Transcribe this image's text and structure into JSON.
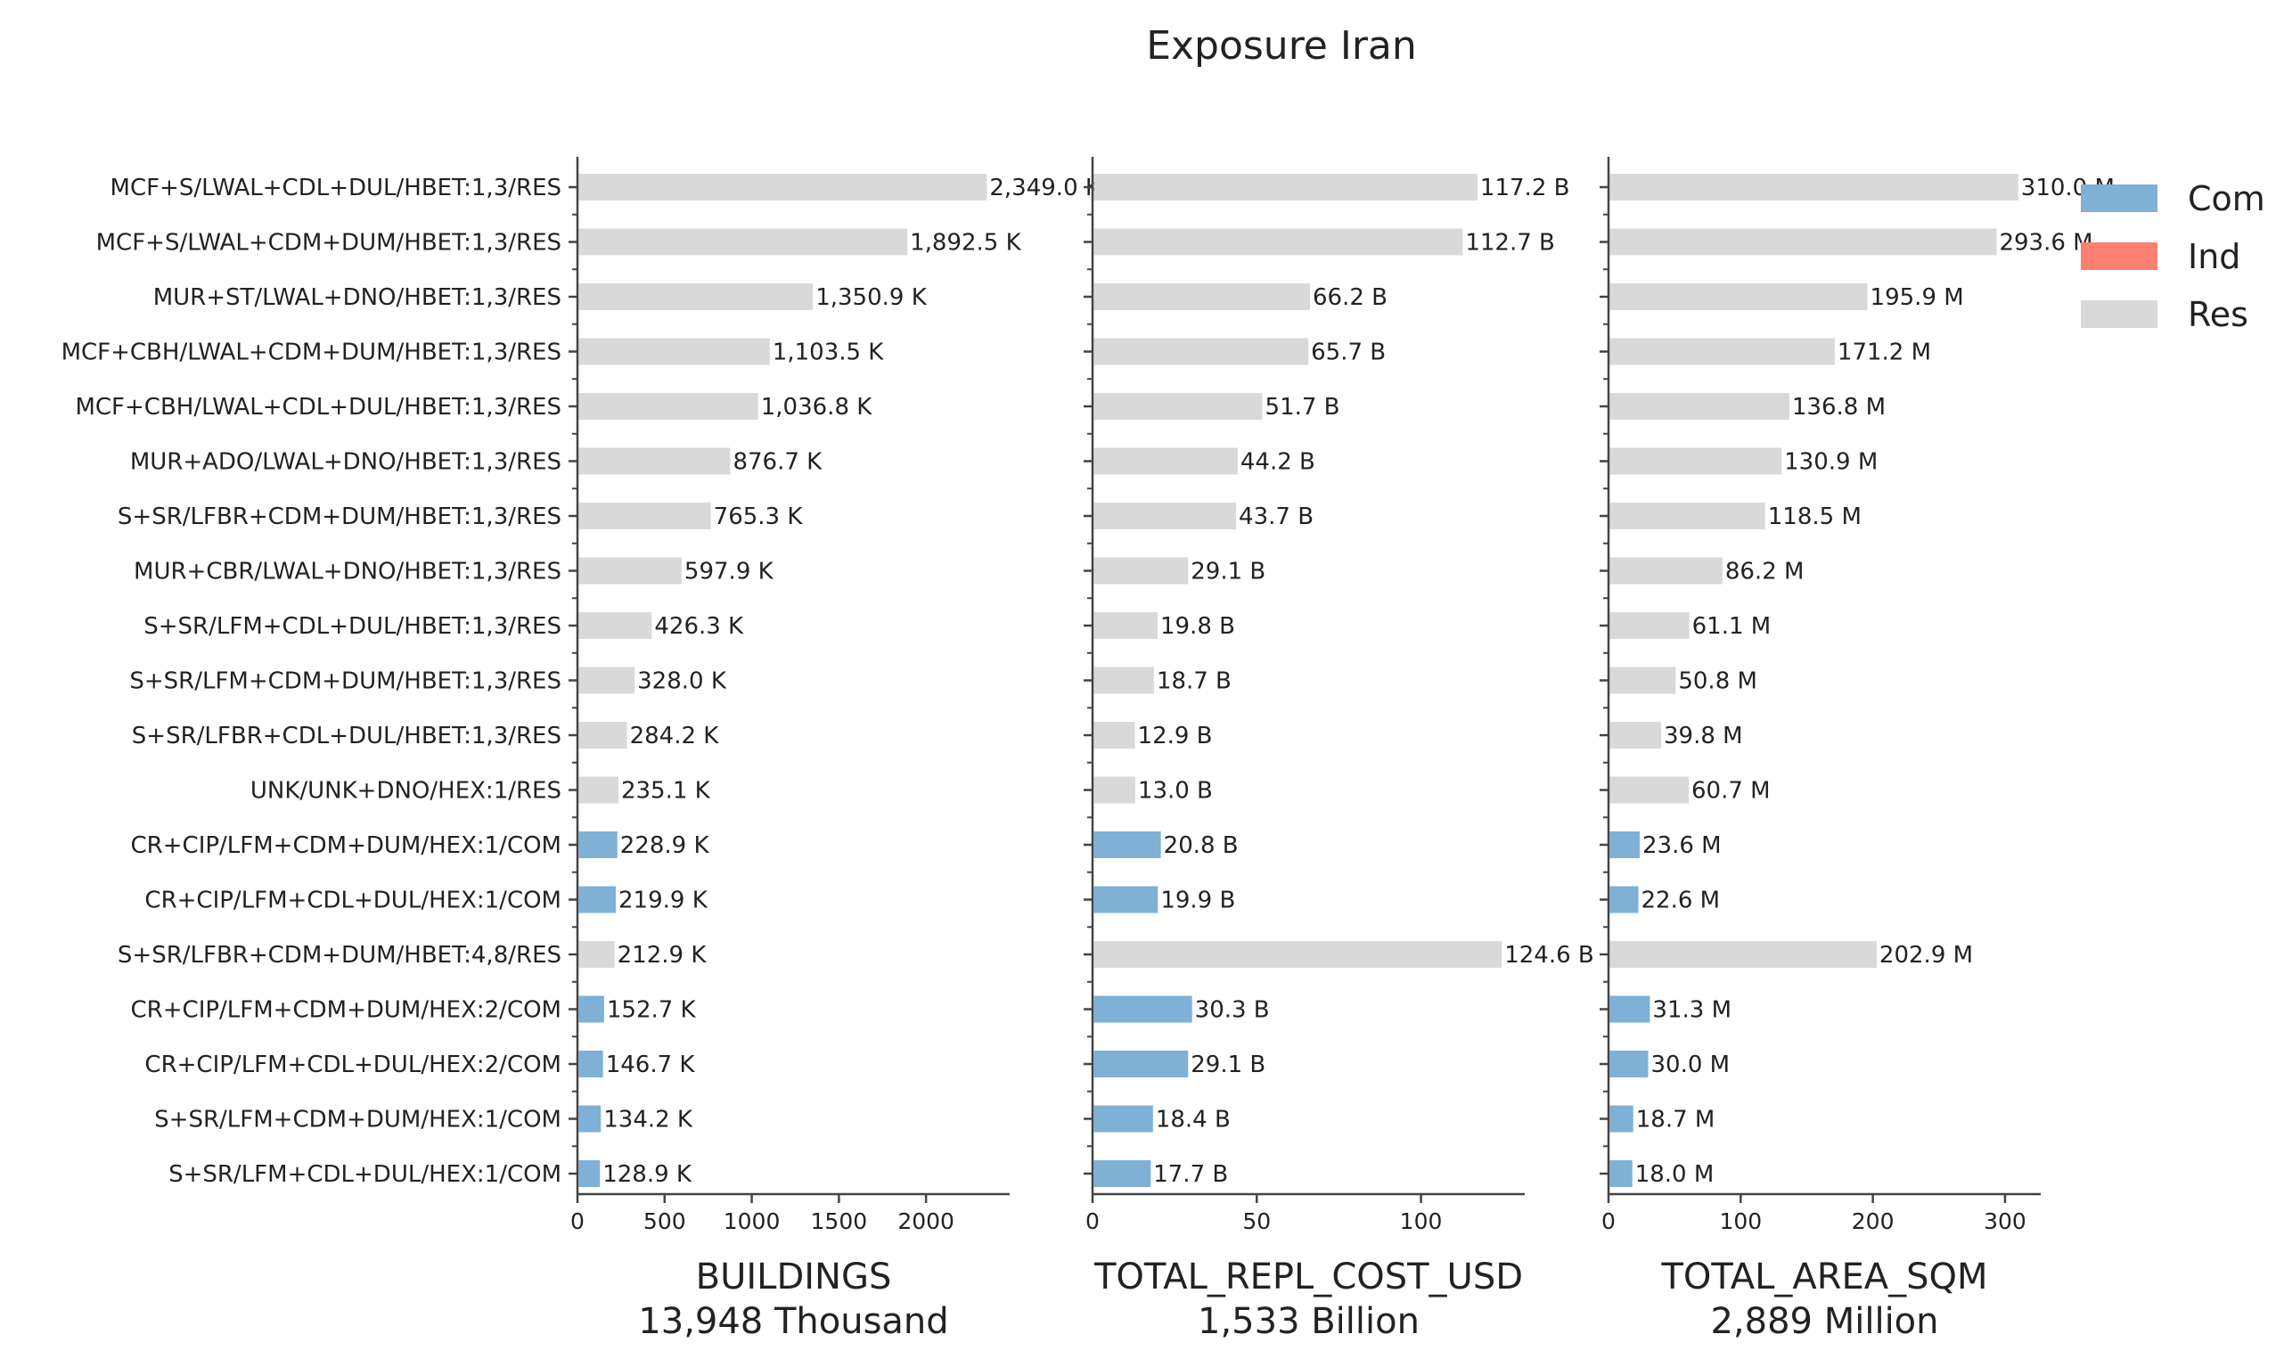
{
  "chart_data": {
    "type": "bar",
    "title": "Exposure Iran",
    "colors": {
      "Com": "#7fb0d5",
      "Ind": "#fb8072",
      "Res": "#d9d9d9"
    },
    "legend": {
      "placement": "top-right",
      "entries": [
        "Com",
        "Ind",
        "Res"
      ]
    },
    "grid": false,
    "categories": [
      "MCF+S/LWAL+CDL+DUL/HBET:1,3/RES",
      "MCF+S/LWAL+CDM+DUM/HBET:1,3/RES",
      "MUR+ST/LWAL+DNO/HBET:1,3/RES",
      "MCF+CBH/LWAL+CDM+DUM/HBET:1,3/RES",
      "MCF+CBH/LWAL+CDL+DUL/HBET:1,3/RES",
      "MUR+ADO/LWAL+DNO/HBET:1,3/RES",
      "S+SR/LFBR+CDM+DUM/HBET:1,3/RES",
      "MUR+CBR/LWAL+DNO/HBET:1,3/RES",
      "S+SR/LFM+CDL+DUL/HBET:1,3/RES",
      "S+SR/LFM+CDM+DUM/HBET:1,3/RES",
      "S+SR/LFBR+CDL+DUL/HBET:1,3/RES",
      "UNK/UNK+DNO/HEX:1/RES",
      "CR+CIP/LFM+CDM+DUM/HEX:1/COM",
      "CR+CIP/LFM+CDL+DUL/HEX:1/COM",
      "S+SR/LFBR+CDM+DUM/HBET:4,8/RES",
      "CR+CIP/LFM+CDM+DUM/HEX:2/COM",
      "CR+CIP/LFM+CDL+DUL/HEX:2/COM",
      "S+SR/LFM+CDM+DUM/HEX:1/COM",
      "S+SR/LFM+CDL+DUL/HEX:1/COM"
    ],
    "occupancy": [
      "Res",
      "Res",
      "Res",
      "Res",
      "Res",
      "Res",
      "Res",
      "Res",
      "Res",
      "Res",
      "Res",
      "Res",
      "Com",
      "Com",
      "Res",
      "Com",
      "Com",
      "Com",
      "Com"
    ],
    "panels": [
      {
        "xlabel": "BUILDINGS",
        "total_label": "13,948 Thousand",
        "xlim": [
          0,
          2480
        ],
        "ticks": [
          0,
          500,
          1000,
          1500,
          2000
        ],
        "tick_labels": [
          "0",
          "500",
          "1000",
          "1500",
          "2000"
        ],
        "values": [
          2349.0,
          1892.5,
          1350.9,
          1103.5,
          1036.8,
          876.7,
          765.3,
          597.9,
          426.3,
          328.0,
          284.2,
          235.1,
          228.9,
          219.9,
          212.9,
          152.7,
          146.7,
          134.2,
          128.9
        ],
        "value_labels": [
          "2,349.0 K",
          "1,892.5 K",
          "1,350.9 K",
          "1,103.5 K",
          "1,036.8 K",
          "876.7 K",
          "765.3 K",
          "597.9 K",
          "426.3 K",
          "328.0 K",
          "284.2 K",
          "235.1 K",
          "228.9 K",
          "219.9 K",
          "212.9 K",
          "152.7 K",
          "146.7 K",
          "134.2 K",
          "128.9 K"
        ]
      },
      {
        "xlabel": "TOTAL_REPL_COST_USD",
        "total_label": "1,533 Billion",
        "xlim": [
          0,
          131.6
        ],
        "ticks": [
          0,
          50,
          100
        ],
        "tick_labels": [
          "0",
          "50",
          "100"
        ],
        "values": [
          117.2,
          112.7,
          66.2,
          65.7,
          51.7,
          44.2,
          43.7,
          29.1,
          19.8,
          18.7,
          12.9,
          13.0,
          20.8,
          19.9,
          124.6,
          30.3,
          29.1,
          18.4,
          17.7
        ],
        "value_labels": [
          "117.2 B",
          "112.7 B",
          "66.2 B",
          "65.7 B",
          "51.7 B",
          "44.2 B",
          "43.7 B",
          "29.1 B",
          "19.8 B",
          "18.7 B",
          "12.9 B",
          "13.0 B",
          "20.8 B",
          "19.9 B",
          "124.6 B",
          "30.3 B",
          "29.1 B",
          "18.4 B",
          "17.7 B"
        ]
      },
      {
        "xlabel": "TOTAL_AREA_SQM",
        "total_label": "2,889 Million",
        "xlim": [
          0,
          327
        ],
        "ticks": [
          0,
          100,
          200,
          300
        ],
        "tick_labels": [
          "0",
          "100",
          "200",
          "300"
        ],
        "values": [
          310.0,
          293.6,
          195.9,
          171.2,
          136.8,
          130.9,
          118.5,
          86.2,
          61.1,
          50.8,
          39.8,
          60.7,
          23.6,
          22.6,
          202.9,
          31.3,
          30.0,
          18.7,
          18.0
        ],
        "value_labels": [
          "310.0 M",
          "293.6 M",
          "195.9 M",
          "171.2 M",
          "136.8 M",
          "130.9 M",
          "118.5 M",
          "86.2 M",
          "61.1 M",
          "50.8 M",
          "39.8 M",
          "60.7 M",
          "23.6 M",
          "22.6 M",
          "202.9 M",
          "31.3 M",
          "30.0 M",
          "18.7 M",
          "18.0 M"
        ]
      }
    ]
  }
}
